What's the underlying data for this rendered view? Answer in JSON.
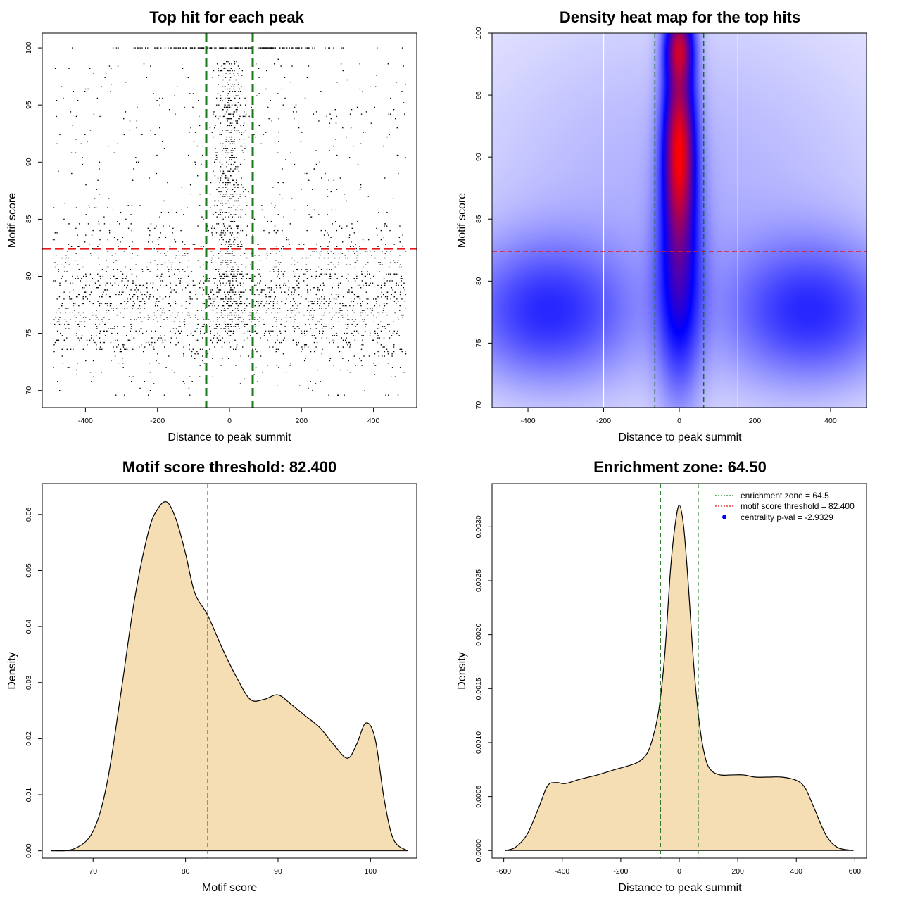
{
  "chart_data": [
    {
      "id": "scatter",
      "type": "scatter",
      "title": "Top hit for each peak",
      "xlabel": "Distance to peak summit",
      "ylabel": "Motif score",
      "xlim": [
        -520,
        520
      ],
      "ylim": [
        68.5,
        101.3
      ],
      "xticks": [
        -400,
        -200,
        0,
        200,
        400
      ],
      "xtick_labels": [
        "-400",
        "-200",
        "0",
        "200",
        "400"
      ],
      "yticks": [
        70,
        75,
        80,
        85,
        90,
        95,
        100
      ],
      "ytick_labels": [
        "70",
        "75",
        "80",
        "85",
        "90",
        "95",
        "100"
      ],
      "hline": 82.4,
      "hline_color": "#e31a1c",
      "vlines": [
        -64.5,
        64.5
      ],
      "vline_color": "#1a7a1a",
      "point_color": "#000000",
      "point_groups": [
        {
          "name": "background",
          "n": 1900,
          "x_range": [
            -490,
            490
          ],
          "y_mean": 77.5,
          "y_sd": 3.2
        },
        {
          "name": "background-upper",
          "n": 420,
          "x_range": [
            -490,
            490
          ],
          "y_range": [
            82,
            99
          ]
        },
        {
          "name": "central",
          "n": 620,
          "x_mean": 0,
          "x_sd": 22,
          "y_range": [
            75,
            99
          ]
        },
        {
          "name": "score-100-row",
          "n": 180,
          "x_mean": 0,
          "x_sd": 150,
          "y": 100
        }
      ]
    },
    {
      "id": "heatmap",
      "type": "heatmap",
      "title": "Density heat map for the top hits",
      "xlabel": "Distance to peak summit",
      "ylabel": "Motif score",
      "xlim": [
        -495,
        495
      ],
      "ylim": [
        69.8,
        100
      ],
      "xticks": [
        -400,
        -200,
        0,
        200,
        400
      ],
      "xtick_labels": [
        "-400",
        "-200",
        "0",
        "200",
        "400"
      ],
      "yticks": [
        70,
        75,
        80,
        85,
        90,
        95,
        100
      ],
      "ytick_labels": [
        "70",
        "75",
        "80",
        "85",
        "90",
        "95",
        "100"
      ],
      "hline": 82.4,
      "hline_color": "#e31a1c",
      "vlines": [
        -64.5,
        64.5
      ],
      "vline_color": "#1a6e1a",
      "white_vlines": [
        -200,
        155
      ],
      "color_scale": [
        "#ffffff",
        "#0000ff",
        "#ff0000"
      ],
      "density_components": [
        {
          "x": 0,
          "y": 91,
          "sx": 28,
          "sy": 5,
          "w": 1.0
        },
        {
          "x": 0,
          "y": 99,
          "sx": 25,
          "sy": 2,
          "w": 0.7
        },
        {
          "x": 0,
          "y": 80,
          "sx": 40,
          "sy": 6,
          "w": 0.45
        },
        {
          "x": -350,
          "y": 77.5,
          "sx": 150,
          "sy": 3.8,
          "w": 0.32
        },
        {
          "x": 350,
          "y": 77.5,
          "sx": 150,
          "sy": 3.8,
          "w": 0.32
        },
        {
          "x": 0,
          "y": 86,
          "sx": 450,
          "sy": 12,
          "w": 0.1
        }
      ]
    },
    {
      "id": "score-density",
      "type": "area",
      "title": "Motif score threshold: 82.400",
      "xlabel": "Motif score",
      "ylabel": "Density",
      "xlim": [
        64.5,
        105
      ],
      "ylim": [
        -0.0013,
        0.0655
      ],
      "xticks": [
        70,
        80,
        90,
        100
      ],
      "xtick_labels": [
        "70",
        "80",
        "90",
        "100"
      ],
      "yticks": [
        0,
        0.01,
        0.02,
        0.03,
        0.04,
        0.05,
        0.06
      ],
      "ytick_labels": [
        "0.00",
        "0.01",
        "0.02",
        "0.03",
        "0.04",
        "0.05",
        "0.06"
      ],
      "fill_color": "#f5deb3",
      "vline": 82.4,
      "vline_color": "#e31a1c",
      "x": [
        65.5,
        68,
        70,
        71.5,
        73,
        74.5,
        76,
        77,
        78,
        79,
        80,
        81,
        82.4,
        84,
        85.5,
        87,
        88.5,
        90,
        91.5,
        93,
        94.5,
        96,
        97.5,
        98.5,
        99.5,
        100.5,
        101.5,
        102.5,
        104
      ],
      "y": [
        0,
        0.0004,
        0.0035,
        0.012,
        0.028,
        0.045,
        0.057,
        0.061,
        0.0622,
        0.059,
        0.053,
        0.046,
        0.042,
        0.036,
        0.031,
        0.027,
        0.027,
        0.0278,
        0.026,
        0.024,
        0.022,
        0.019,
        0.0165,
        0.019,
        0.0228,
        0.02,
        0.009,
        0.002,
        0
      ]
    },
    {
      "id": "distance-density",
      "type": "area",
      "title": "Enrichment zone: 64.50",
      "xlabel": "Distance to peak summit",
      "ylabel": "Density",
      "xlim": [
        -640,
        640
      ],
      "ylim": [
        -7e-05,
        0.0034
      ],
      "xticks": [
        -600,
        -400,
        -200,
        0,
        200,
        400,
        600
      ],
      "xtick_labels": [
        "-600",
        "-400",
        "-200",
        "0",
        "200",
        "400",
        "600"
      ],
      "yticks": [
        0,
        0.0005,
        0.001,
        0.0015,
        0.002,
        0.0025,
        0.003
      ],
      "ytick_labels": [
        "0.0000",
        "0.0005",
        "0.0010",
        "0.0015",
        "0.0020",
        "0.0025",
        "0.0030"
      ],
      "fill_color": "#f5deb3",
      "vlines": [
        -64.5,
        64.5
      ],
      "vline_color": "#1a6e1a",
      "x": [
        -595,
        -560,
        -520,
        -480,
        -450,
        -420,
        -390,
        -340,
        -280,
        -220,
        -180,
        -140,
        -110,
        -90,
        -70,
        -50,
        -30,
        -15,
        0,
        15,
        30,
        50,
        70,
        90,
        110,
        140,
        180,
        220,
        260,
        300,
        350,
        400,
        430,
        460,
        500,
        540,
        595
      ],
      "y": [
        0,
        3e-05,
        0.00015,
        0.0004,
        0.0006,
        0.00063,
        0.00062,
        0.00066,
        0.0007,
        0.00075,
        0.00078,
        0.00082,
        0.0009,
        0.00105,
        0.0013,
        0.0018,
        0.0026,
        0.003,
        0.0032,
        0.003,
        0.0025,
        0.0017,
        0.00115,
        0.00085,
        0.00074,
        0.0007,
        0.0007,
        0.0007,
        0.00068,
        0.00068,
        0.00068,
        0.00065,
        0.00058,
        0.0004,
        0.00015,
        3e-05,
        0
      ],
      "legend": [
        {
          "label": "enrichment zone = 64.5",
          "style": "dotted",
          "color": "#1a7a1a"
        },
        {
          "label": "motif score threshold = 82.400",
          "style": "dotted",
          "color": "#e31a1c"
        },
        {
          "label": "centrality p-val = -2.9329",
          "style": "point",
          "color": "#0000ff"
        }
      ]
    }
  ]
}
